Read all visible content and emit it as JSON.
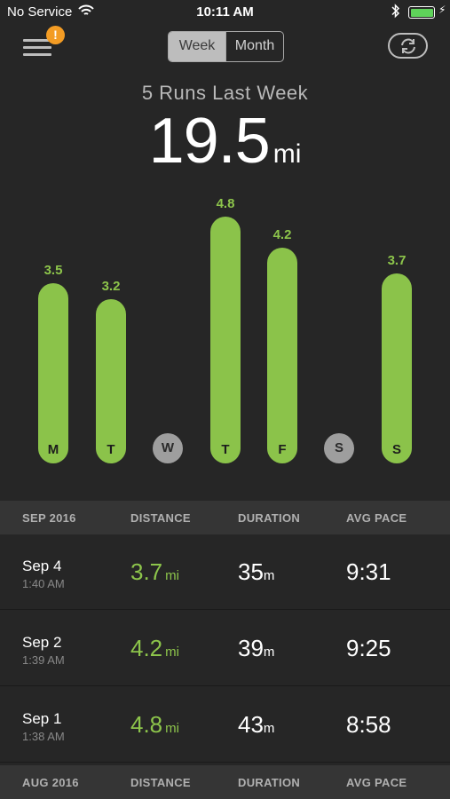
{
  "status_bar": {
    "carrier": "No Service",
    "time": "10:11 AM"
  },
  "nav": {
    "badge": "!",
    "segments": [
      "Week",
      "Month"
    ],
    "active_segment": "Week"
  },
  "summary": {
    "title": "5 Runs Last Week",
    "total": "19.5",
    "unit": "mi"
  },
  "colors": {
    "accent_green": "#8bc34a",
    "badge_orange": "#f39c24",
    "background": "#262626"
  },
  "chart_data": {
    "type": "bar",
    "categories": [
      "M",
      "T",
      "W",
      "T",
      "F",
      "S",
      "S"
    ],
    "values": [
      3.5,
      3.2,
      null,
      4.8,
      4.2,
      null,
      3.7
    ],
    "value_labels": [
      "3.5",
      "3.2",
      "",
      "4.8",
      "4.2",
      "",
      "3.7"
    ],
    "ylim": [
      0,
      4.8
    ]
  },
  "table": {
    "sections": [
      {
        "month": "SEP 2016",
        "headers": [
          "DISTANCE",
          "DURATION",
          "AVG PACE"
        ],
        "rows": [
          {
            "date": "Sep 4",
            "time": "1:40 AM",
            "distance": "3.7",
            "distance_unit": "mi",
            "duration": "35",
            "duration_unit": "m",
            "pace": "9:31"
          },
          {
            "date": "Sep 2",
            "time": "1:39 AM",
            "distance": "4.2",
            "distance_unit": "mi",
            "duration": "39",
            "duration_unit": "m",
            "pace": "9:25"
          },
          {
            "date": "Sep 1",
            "time": "1:38 AM",
            "distance": "4.8",
            "distance_unit": "mi",
            "duration": "43",
            "duration_unit": "m",
            "pace": "8:58"
          }
        ]
      },
      {
        "month": "AUG 2016",
        "headers": [
          "DISTANCE",
          "DURATION",
          "AVG PACE"
        ],
        "rows": []
      }
    ]
  }
}
